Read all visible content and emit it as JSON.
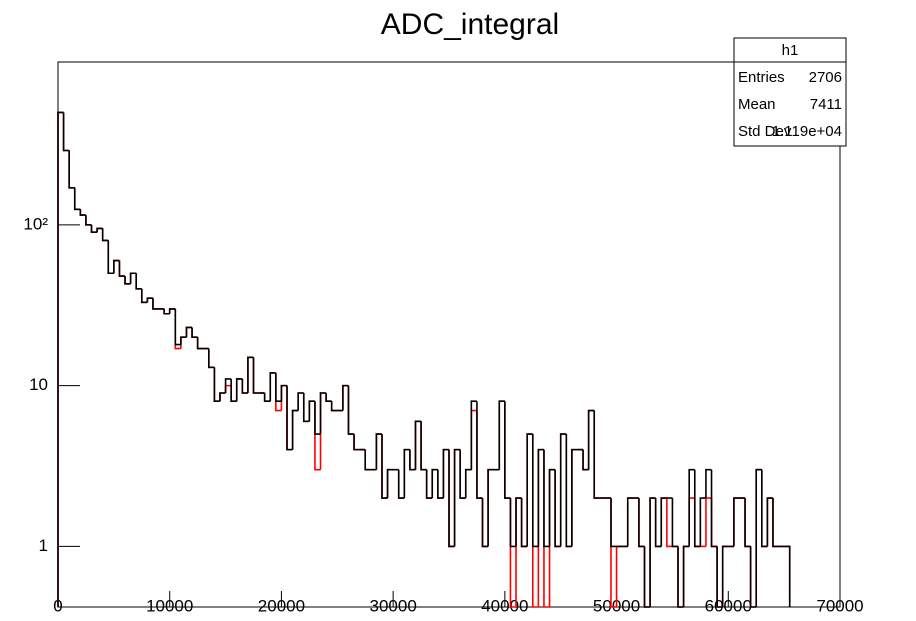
{
  "chart_data": {
    "type": "histogram",
    "title": "ADC_integral",
    "log_y": true,
    "xlim": [
      0,
      70000
    ],
    "xticks": [
      0,
      10000,
      20000,
      30000,
      40000,
      50000,
      60000,
      70000
    ],
    "ylim": [
      0.42,
      1030
    ],
    "yticks": [
      1,
      10,
      {
        "value": 100,
        "label": "10²"
      }
    ],
    "bins": [
      0,
      500,
      1000,
      1500,
      2000,
      2500,
      3000,
      3500,
      4000,
      4500,
      5000,
      5500,
      6000,
      6500,
      7000,
      7500,
      8000,
      8500,
      9000,
      9500,
      10000,
      10500,
      11000,
      11500,
      12000,
      12500,
      13000,
      13500,
      14000,
      14500,
      15000,
      15500,
      16000,
      16500,
      17000,
      17500,
      18000,
      18500,
      19000,
      19500,
      20000,
      20500,
      21000,
      21500,
      22000,
      22500,
      23000,
      23500,
      24000,
      24500,
      25000,
      25500,
      26000,
      26500,
      27000,
      27500,
      28000,
      28500,
      29000,
      29500,
      30000,
      30500,
      31000,
      31500,
      32000,
      32500,
      33000,
      33500,
      34000,
      34500,
      35000,
      35500,
      36000,
      36500,
      37000,
      37500,
      38000,
      38500,
      39000,
      39500,
      40000,
      40500,
      41000,
      41500,
      42000,
      42500,
      43000,
      43500,
      44000,
      44500,
      45000,
      45500,
      46000,
      46500,
      47000,
      47500,
      48000,
      48500,
      49000,
      49500,
      50000,
      50500,
      51000,
      51500,
      52000,
      52500,
      53000,
      53500,
      54000,
      54500,
      55000,
      55500,
      56000,
      56500,
      57000,
      57500,
      58000,
      58500,
      59000,
      59500,
      60000,
      60500,
      61000,
      61500,
      62000,
      62500,
      63000,
      63500,
      64000,
      64500,
      65000,
      65500
    ],
    "series": [
      {
        "color": "#ff0000",
        "values": [
          500,
          290,
          170,
          125,
          115,
          100,
          90,
          95,
          80,
          50,
          60,
          48,
          43,
          50,
          40,
          33,
          35,
          30,
          30,
          28,
          30,
          17,
          20,
          23,
          20,
          17,
          17,
          13,
          8,
          9,
          10,
          8,
          11,
          9,
          15,
          9,
          9,
          8,
          12,
          7,
          10,
          4,
          7,
          9,
          6,
          8,
          3,
          9,
          8,
          7,
          7,
          10,
          5,
          4,
          4,
          3,
          3,
          5,
          2,
          3,
          3,
          2,
          4,
          3,
          6,
          3,
          2,
          3,
          2,
          4,
          1,
          4,
          2,
          3,
          7,
          2,
          1,
          3,
          3,
          8,
          2,
          0,
          2,
          1,
          5,
          0,
          4,
          0,
          3,
          1,
          5,
          1,
          4,
          4,
          3,
          7,
          2,
          2,
          2,
          0,
          1,
          1,
          2,
          2,
          1,
          0,
          2,
          1,
          2,
          1,
          1,
          0,
          1,
          2,
          1,
          1,
          2,
          1,
          0,
          1,
          1,
          2,
          2,
          1,
          0,
          3,
          1,
          2,
          1,
          1,
          1
        ]
      },
      {
        "color": "#000000",
        "values": [
          500,
          290,
          170,
          125,
          115,
          100,
          90,
          95,
          80,
          50,
          60,
          48,
          43,
          50,
          40,
          33,
          35,
          30,
          30,
          28,
          30,
          18,
          20,
          23,
          20,
          17,
          17,
          13,
          8,
          9,
          11,
          8,
          11,
          9,
          15,
          9,
          9,
          8,
          12,
          8,
          10,
          4,
          7,
          9,
          6,
          8,
          5,
          9,
          8,
          7,
          7,
          10,
          5,
          4,
          4,
          3,
          3,
          5,
          2,
          3,
          3,
          2,
          4,
          3,
          6,
          3,
          2,
          3,
          2,
          4,
          1,
          4,
          2,
          3,
          8,
          2,
          1,
          3,
          3,
          8,
          2,
          1,
          2,
          1,
          5,
          1,
          4,
          1,
          3,
          1,
          5,
          1,
          4,
          4,
          3,
          7,
          2,
          2,
          2,
          1,
          1,
          1,
          2,
          2,
          1,
          0,
          2,
          1,
          2,
          2,
          1,
          0,
          1,
          3,
          1,
          2,
          3,
          1,
          0,
          1,
          1,
          2,
          2,
          1,
          0,
          3,
          1,
          2,
          1,
          1,
          1
        ]
      }
    ],
    "stats": {
      "title": "h1",
      "rows": [
        {
          "name": "Entries",
          "value": 2706
        },
        {
          "name": "Mean",
          "value": 7411
        },
        {
          "name": "Std Dev",
          "value": 11190,
          "value_label": "1.119e+04"
        }
      ]
    }
  }
}
